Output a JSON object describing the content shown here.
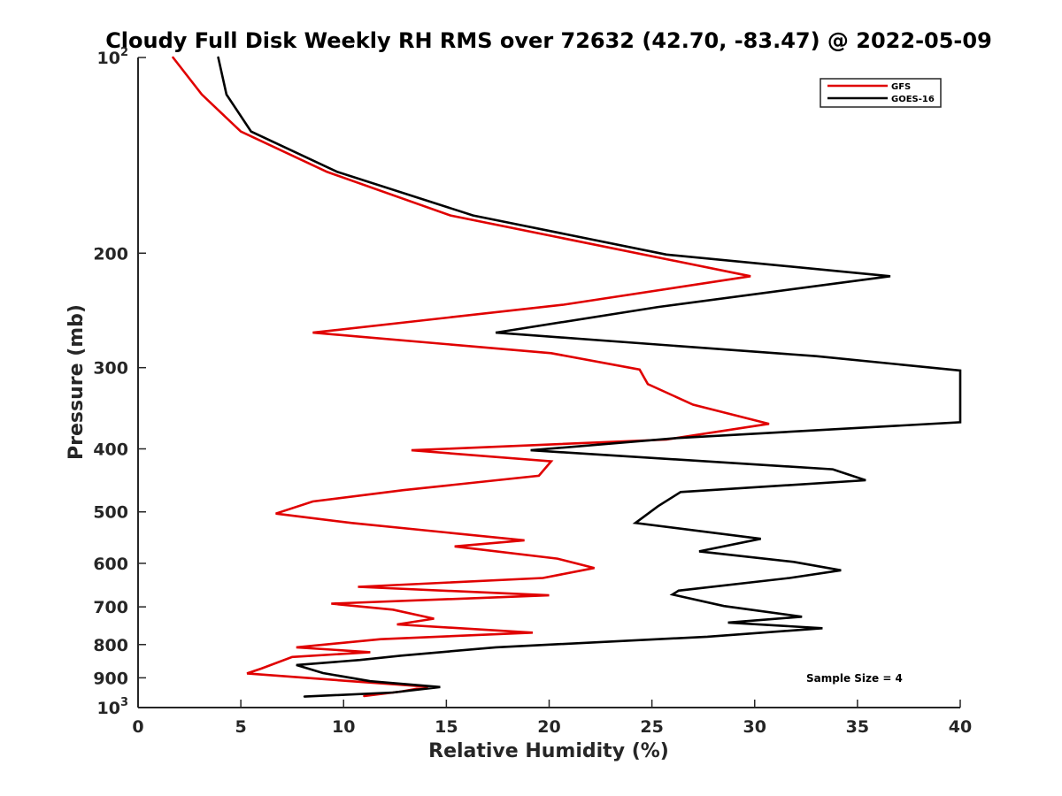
{
  "chart_data": {
    "type": "line",
    "title": "Cloudy Full Disk Weekly RH RMS over 72632 (42.70, -83.47) @ 2022-05-09",
    "xlabel": "Relative Humidity (%)",
    "ylabel": "Pressure (mb)",
    "xlim": [
      0,
      40
    ],
    "ylim": [
      100,
      1000
    ],
    "yscale": "log",
    "y_reversed": true,
    "grid": false,
    "legend_position": "top-right",
    "x_ticks": [
      "0",
      "5",
      "10",
      "15",
      "20",
      "25",
      "30",
      "35",
      "40"
    ],
    "y_ticks": [
      {
        "value": 100,
        "label": "10",
        "exp": "2"
      },
      {
        "value": 200,
        "label": "200"
      },
      {
        "value": 300,
        "label": "300"
      },
      {
        "value": 400,
        "label": "400"
      },
      {
        "value": 500,
        "label": "500"
      },
      {
        "value": 600,
        "label": "600"
      },
      {
        "value": 700,
        "label": "700"
      },
      {
        "value": 800,
        "label": "800"
      },
      {
        "value": 900,
        "label": "900"
      },
      {
        "value": 1000,
        "label": "10",
        "exp": "3"
      }
    ],
    "annotation": "Sample Size = 4",
    "series": [
      {
        "name": "GFS",
        "color": "#e00000",
        "points": [
          [
            1.7,
            100
          ],
          [
            3.1,
            114
          ],
          [
            5.0,
            130
          ],
          [
            9.2,
            150
          ],
          [
            15.2,
            175
          ],
          [
            29.8,
            217
          ],
          [
            20.7,
            240
          ],
          [
            8.5,
            265
          ],
          [
            20.1,
            285
          ],
          [
            24.4,
            302
          ],
          [
            24.8,
            318
          ],
          [
            27.0,
            342
          ],
          [
            30.7,
            366
          ],
          [
            25.7,
            387
          ],
          [
            13.3,
            402
          ],
          [
            20.1,
            418
          ],
          [
            19.5,
            440
          ],
          [
            12.9,
            463
          ],
          [
            8.5,
            482
          ],
          [
            6.7,
            503
          ],
          [
            10.4,
            520
          ],
          [
            18.8,
            553
          ],
          [
            15.4,
            565
          ],
          [
            20.4,
            590
          ],
          [
            22.2,
            610
          ],
          [
            19.7,
            632
          ],
          [
            10.7,
            652
          ],
          [
            20.0,
            672
          ],
          [
            9.4,
            692
          ],
          [
            12.4,
            707
          ],
          [
            14.4,
            730
          ],
          [
            12.6,
            745
          ],
          [
            19.2,
            767
          ],
          [
            11.8,
            785
          ],
          [
            7.7,
            808
          ],
          [
            11.3,
            822
          ],
          [
            7.5,
            836
          ],
          [
            6.0,
            871
          ],
          [
            5.3,
            886
          ],
          [
            10.2,
            910
          ],
          [
            14.1,
            929
          ],
          [
            12.8,
            945
          ],
          [
            11.0,
            960
          ]
        ]
      },
      {
        "name": "GOES-16",
        "color": "#000000",
        "points": [
          [
            3.9,
            100
          ],
          [
            4.3,
            114
          ],
          [
            5.5,
            130
          ],
          [
            9.7,
            150
          ],
          [
            16.3,
            175
          ],
          [
            25.7,
            201
          ],
          [
            36.6,
            217
          ],
          [
            25.3,
            242
          ],
          [
            17.4,
            265
          ],
          [
            33.0,
            288
          ],
          [
            40.0,
            303
          ],
          [
            40.0,
            364
          ],
          [
            26.2,
            385
          ],
          [
            19.1,
            402
          ],
          [
            33.8,
            430
          ],
          [
            35.4,
            447
          ],
          [
            26.4,
            466
          ],
          [
            25.3,
            490
          ],
          [
            24.2,
            520
          ],
          [
            30.3,
            550
          ],
          [
            27.3,
            575
          ],
          [
            31.9,
            597
          ],
          [
            34.2,
            615
          ],
          [
            31.7,
            632
          ],
          [
            26.3,
            661
          ],
          [
            26.0,
            670
          ],
          [
            28.5,
            698
          ],
          [
            32.3,
            725
          ],
          [
            28.7,
            740
          ],
          [
            33.3,
            755
          ],
          [
            27.7,
            778
          ],
          [
            17.4,
            808
          ],
          [
            12.8,
            832
          ],
          [
            10.8,
            845
          ],
          [
            7.7,
            860
          ],
          [
            9.0,
            885
          ],
          [
            11.3,
            911
          ],
          [
            14.7,
            930
          ],
          [
            12.4,
            948
          ],
          [
            8.1,
            962
          ]
        ]
      }
    ]
  }
}
